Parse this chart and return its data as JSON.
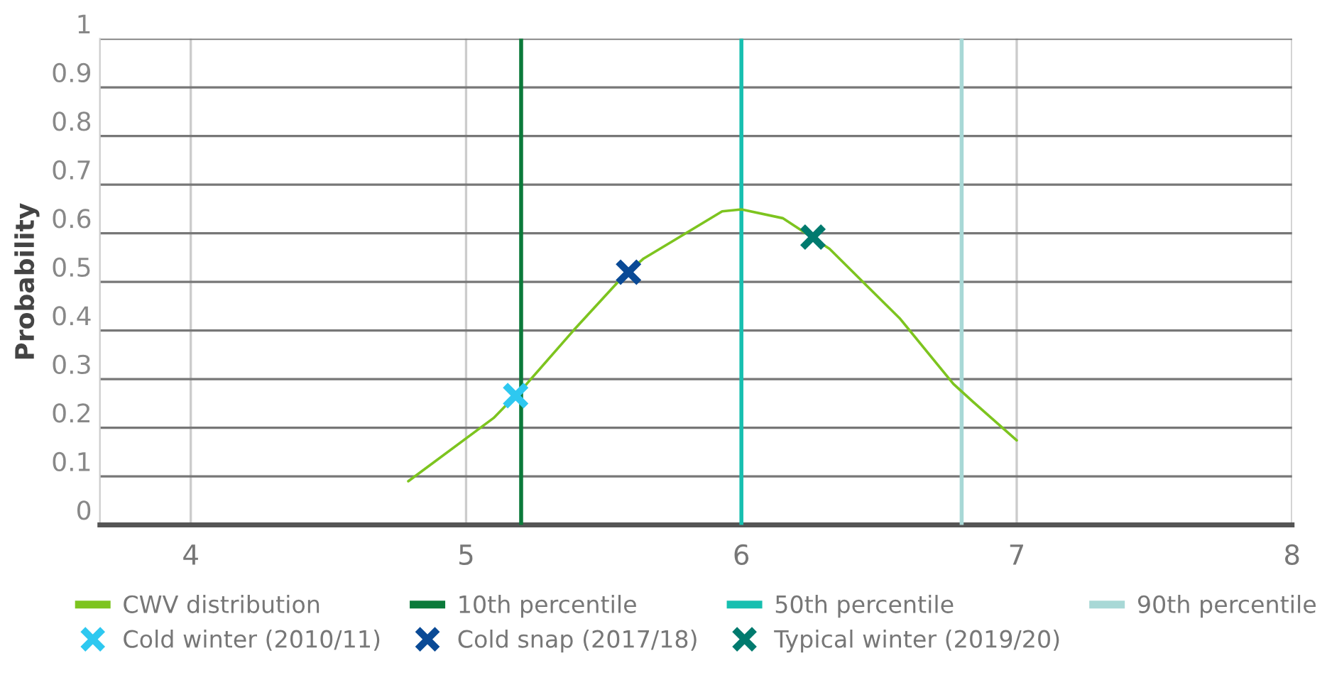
{
  "chart_data": {
    "type": "line",
    "ylabel": "Probability",
    "xlim": [
      3.67,
      8
    ],
    "xticks": [
      4,
      5,
      6,
      7,
      8
    ],
    "ylim": [
      0,
      1
    ],
    "yticks": [
      0,
      0.1,
      0.2,
      0.3,
      0.4,
      0.5,
      0.6,
      0.7,
      0.8,
      0.9,
      1
    ],
    "grid": true,
    "legend": "bottom",
    "series": [
      {
        "name": "CWV distribution",
        "color": "#7dc41f",
        "marker": "none",
        "line_style": "solid",
        "x": [
          4.79,
          5.1,
          5.22,
          5.39,
          5.56,
          5.645,
          5.76,
          5.93,
          6.0,
          6.15,
          6.32,
          6.575,
          6.77,
          6.84,
          7.0
        ],
        "values": [
          0.09,
          0.22,
          0.29,
          0.4,
          0.505,
          0.548,
          0.587,
          0.645,
          0.649,
          0.631,
          0.568,
          0.425,
          0.29,
          0.254,
          0.174
        ]
      },
      {
        "name": "Cold winter (2010/11)",
        "type": "scatter",
        "color": "#2ec8f0",
        "marker": "cross",
        "x": [
          5.18
        ],
        "values": [
          0.266
        ]
      },
      {
        "name": "Cold snap (2017/18)",
        "type": "scatter",
        "color": "#0a4a96",
        "marker": "cross",
        "x": [
          5.59
        ],
        "values": [
          0.52
        ]
      },
      {
        "name": "Typical winter (2019/20)",
        "type": "scatter",
        "color": "#007a6e",
        "marker": "cross",
        "x": [
          6.26
        ],
        "values": [
          0.592
        ]
      }
    ],
    "ref_lines": [
      {
        "axis": "x",
        "value": 5.2,
        "label": "10th percentile",
        "color": "#0b7a3a"
      },
      {
        "axis": "x",
        "value": 6.0,
        "label": "50th percentile",
        "color": "#17bfb0"
      },
      {
        "axis": "x",
        "value": 6.8,
        "label": "90th percentile",
        "color": "#a8d8d6"
      }
    ]
  }
}
